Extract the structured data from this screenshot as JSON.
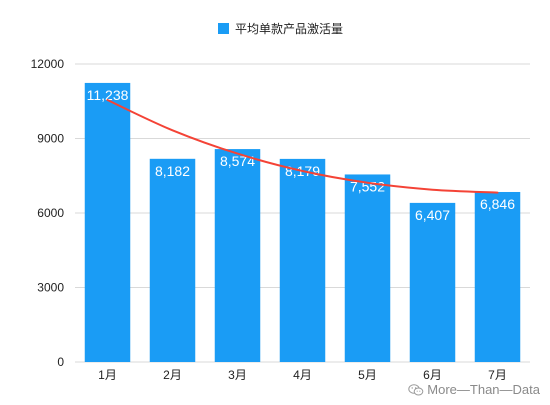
{
  "legend": {
    "label": "平均单款产品激活量",
    "color": "#1a9cf5"
  },
  "watermark": {
    "text": "More—Than—Data",
    "icon": "wechat-icon"
  },
  "colors": {
    "bar": "#1a9cf5",
    "trendline": "#f44336",
    "grid": "#d9d9d9",
    "axis_text": "#222222",
    "data_label": "#ffffff"
  },
  "chart_data": {
    "type": "bar",
    "categories": [
      "1月",
      "2月",
      "3月",
      "4月",
      "5月",
      "6月",
      "7月"
    ],
    "series": [
      {
        "name": "平均单款产品激活量",
        "values": [
          11238,
          8182,
          8574,
          8179,
          7552,
          6407,
          6846
        ],
        "value_labels": [
          "11,238",
          "8,182",
          "8,574",
          "8,179",
          "7,552",
          "6,407",
          "6,846"
        ]
      }
    ],
    "trendline": {
      "type": "polynomial",
      "values": [
        10550,
        9330,
        8390,
        7690,
        7220,
        6940,
        6820
      ]
    },
    "yticks": [
      0,
      3000,
      6000,
      9000,
      12000
    ],
    "ytick_labels": [
      "0",
      "3000",
      "6000",
      "9000",
      "12000"
    ],
    "ylim": [
      0,
      12000
    ],
    "grid": true,
    "legend_position": "top-center"
  }
}
